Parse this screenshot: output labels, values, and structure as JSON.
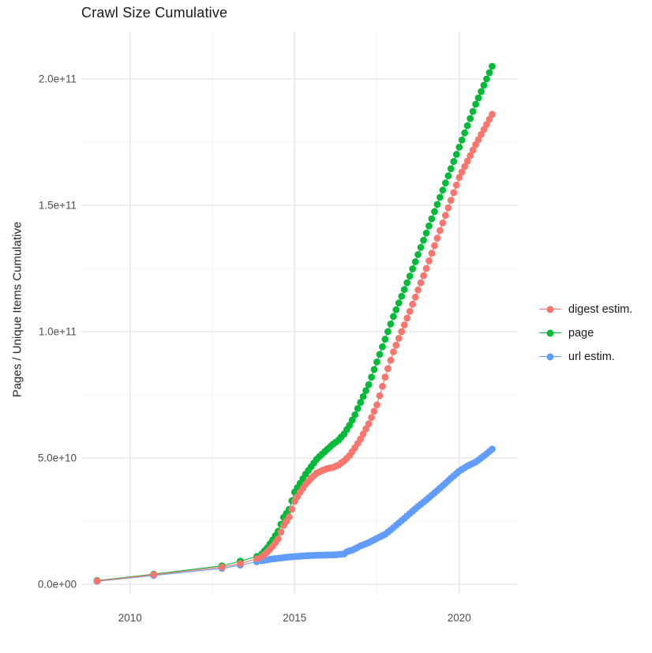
{
  "title": "Crawl Size Cumulative",
  "legend": {
    "items": [
      {
        "label": "digest estim.",
        "color": "#F8766D"
      },
      {
        "label": "page",
        "color": "#00BA38"
      },
      {
        "label": "url estim.",
        "color": "#619CFF"
      }
    ]
  },
  "colors": {
    "grid_major": "#e5e5e5",
    "grid_minor": "#f0f0f0",
    "tick_text": "#4d4d4d",
    "title_text": "#1a1a1a"
  },
  "chart_data": {
    "type": "line",
    "title": "Crawl Size Cumulative",
    "xlabel": "",
    "ylabel": "Pages / Unique Items Cumulative",
    "xlim": [
      2008.52,
      2021.78
    ],
    "ylim": [
      -3750000000,
      218750000000
    ],
    "x_ticks": {
      "values": [
        2010,
        2015,
        2020
      ],
      "labels": [
        "2010",
        "2015",
        "2020"
      ],
      "minor": [
        2012.5,
        2017.5
      ]
    },
    "y_ticks": {
      "values": [
        0,
        50000000000,
        100000000000,
        150000000000,
        200000000000
      ],
      "labels": [
        "0.0e+00",
        "5.0e+10",
        "1.0e+11",
        "1.5e+11",
        "2.0e+11"
      ],
      "minor": [
        25000000000,
        75000000000,
        125000000000,
        175000000000
      ]
    },
    "grid": "major+minor",
    "legend_position": "right",
    "samples": {
      "initial_dates": [
        2009.0,
        2010.72,
        2012.79,
        2013.35,
        2013.85
      ],
      "monthly_start": 2014.0,
      "monthly_end": 2021.0
    },
    "series": [
      {
        "name": "digest estim.",
        "color": "#F8766D",
        "draw_order": 2,
        "anchors": [
          [
            2009.0,
            1300000000.0
          ],
          [
            2010.72,
            3800000000.0
          ],
          [
            2012.79,
            6800000000.0
          ],
          [
            2013.35,
            8200000000.0
          ],
          [
            2013.85,
            10100000000.0
          ],
          [
            2014.0,
            11000000000.0
          ],
          [
            2014.17,
            12800000000.0
          ],
          [
            2014.33,
            15000000000.0
          ],
          [
            2014.5,
            18000000000.0
          ],
          [
            2014.67,
            23400000000.0
          ],
          [
            2014.83,
            26500000000.0
          ],
          [
            2015.0,
            32800000000.0
          ],
          [
            2015.17,
            36500000000.0
          ],
          [
            2015.33,
            39500000000.0
          ],
          [
            2015.5,
            42000000000.0
          ],
          [
            2015.67,
            44000000000.0
          ],
          [
            2015.83,
            45000000000.0
          ],
          [
            2016.0,
            45800000000.0
          ],
          [
            2016.17,
            46300000000.0
          ],
          [
            2016.33,
            47200000000.0
          ],
          [
            2016.5,
            48800000000.0
          ],
          [
            2016.67,
            51000000000.0
          ],
          [
            2016.83,
            54000000000.0
          ],
          [
            2017.0,
            57500000000.0
          ],
          [
            2017.25,
            63500000000.0
          ],
          [
            2017.5,
            71000000000.0
          ],
          [
            2017.75,
            82000000000.0
          ],
          [
            2018.0,
            92000000000.0
          ],
          [
            2018.5,
            108000000000.0
          ],
          [
            2019.0,
            125000000000.0
          ],
          [
            2019.5,
            143000000000.0
          ],
          [
            2020.0,
            161000000000.0
          ],
          [
            2020.5,
            174000000000.0
          ],
          [
            2021.0,
            186000000000.0
          ]
        ]
      },
      {
        "name": "page",
        "color": "#00BA38",
        "draw_order": 0,
        "anchors": [
          [
            2009.0,
            1500000000.0
          ],
          [
            2010.72,
            4000000000.0
          ],
          [
            2012.79,
            7300000000.0
          ],
          [
            2013.35,
            9200000000.0
          ],
          [
            2013.85,
            11000000000.0
          ],
          [
            2014.0,
            12000000000.0
          ],
          [
            2014.17,
            14500000000.0
          ],
          [
            2014.33,
            17500000000.0
          ],
          [
            2014.5,
            21000000000.0
          ],
          [
            2014.67,
            26600000000.0
          ],
          [
            2014.83,
            29500000000.0
          ],
          [
            2015.0,
            36500000000.0
          ],
          [
            2015.17,
            40000000000.0
          ],
          [
            2015.33,
            43500000000.0
          ],
          [
            2015.5,
            46500000000.0
          ],
          [
            2015.67,
            49500000000.0
          ],
          [
            2015.83,
            51500000000.0
          ],
          [
            2016.0,
            53500000000.0
          ],
          [
            2016.17,
            55500000000.0
          ],
          [
            2016.33,
            57000000000.0
          ],
          [
            2016.5,
            59500000000.0
          ],
          [
            2016.67,
            63000000000.0
          ],
          [
            2016.83,
            67000000000.0
          ],
          [
            2017.0,
            72000000000.0
          ],
          [
            2017.25,
            79000000000.0
          ],
          [
            2017.5,
            88000000000.0
          ],
          [
            2018.0,
            106000000000.0
          ],
          [
            2018.5,
            122000000000.0
          ],
          [
            2019.0,
            139000000000.0
          ],
          [
            2019.5,
            156000000000.0
          ],
          [
            2020.0,
            173000000000.0
          ],
          [
            2020.5,
            190000000000.0
          ],
          [
            2021.0,
            205000000000.0
          ]
        ]
      },
      {
        "name": "url estim.",
        "color": "#619CFF",
        "draw_order": 1,
        "anchors": [
          [
            2009.0,
            1200000000.0
          ],
          [
            2010.72,
            3500000000.0
          ],
          [
            2012.79,
            6300000000.0
          ],
          [
            2013.35,
            7600000000.0
          ],
          [
            2013.85,
            8900000000.0
          ],
          [
            2014.0,
            9300000000.0
          ],
          [
            2014.25,
            9900000000.0
          ],
          [
            2014.5,
            10300000000.0
          ],
          [
            2014.75,
            10700000000.0
          ],
          [
            2015.0,
            11000000000.0
          ],
          [
            2015.25,
            11200000000.0
          ],
          [
            2015.5,
            11400000000.0
          ],
          [
            2015.75,
            11500000000.0
          ],
          [
            2016.0,
            11600000000.0
          ],
          [
            2016.25,
            11700000000.0
          ],
          [
            2016.5,
            12000000000.0
          ],
          [
            2016.6,
            13000000000.0
          ],
          [
            2016.75,
            13500000000.0
          ],
          [
            2017.0,
            15200000000.0
          ],
          [
            2017.25,
            16500000000.0
          ],
          [
            2017.5,
            18200000000.0
          ],
          [
            2017.75,
            19800000000.0
          ],
          [
            2018.0,
            22400000000.0
          ],
          [
            2018.25,
            25200000000.0
          ],
          [
            2018.5,
            28000000000.0
          ],
          [
            2018.75,
            30800000000.0
          ],
          [
            2019.0,
            33400000000.0
          ],
          [
            2019.25,
            36200000000.0
          ],
          [
            2019.5,
            39000000000.0
          ],
          [
            2019.75,
            42000000000.0
          ],
          [
            2020.0,
            44800000000.0
          ],
          [
            2020.25,
            46800000000.0
          ],
          [
            2020.5,
            48400000000.0
          ],
          [
            2020.75,
            50800000000.0
          ],
          [
            2021.0,
            53500000000.0
          ]
        ]
      }
    ]
  }
}
